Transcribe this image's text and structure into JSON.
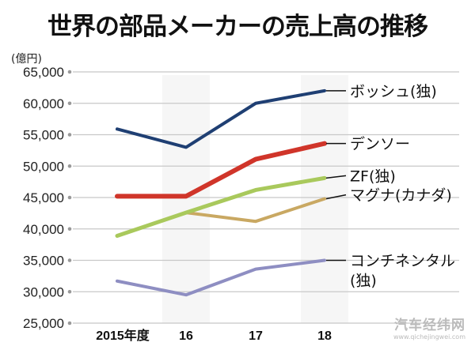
{
  "chart_data": {
    "type": "line",
    "title": "世界の部品メーカーの売上高の推移",
    "ylabel": "(億円)",
    "xlabel": "",
    "categories": [
      "2015年度",
      "16",
      "17",
      "18"
    ],
    "ylim": [
      25000,
      65000
    ],
    "yticks": [
      "25,000",
      "30,000",
      "35,000",
      "40,000",
      "45,000",
      "50,000",
      "55,000",
      "60,000",
      "65,000"
    ],
    "grid": true,
    "legend": "right, labels at line ends",
    "series": [
      {
        "name": "ボッシュ(独)",
        "color": "#1f3f73",
        "values": [
          55900,
          53000,
          60000,
          62000
        ]
      },
      {
        "name": "デンソー",
        "color": "#d0352a",
        "values": [
          45200,
          45200,
          51100,
          53600
        ]
      },
      {
        "name": "ZF(独)",
        "color": "#a9c95c",
        "values": [
          38900,
          42600,
          46200,
          48100
        ]
      },
      {
        "name": "マグナ(カナダ)",
        "color": "#c9a862",
        "values": [
          38900,
          42600,
          41200,
          44800
        ]
      },
      {
        "name": "コンチネンタル",
        "name_line2": "(独)",
        "color": "#8e8ec2",
        "values": [
          31700,
          29500,
          33600,
          35000
        ]
      }
    ]
  },
  "watermark": {
    "main": "汽车经纬网",
    "url": "www.qichejingwei.com"
  }
}
